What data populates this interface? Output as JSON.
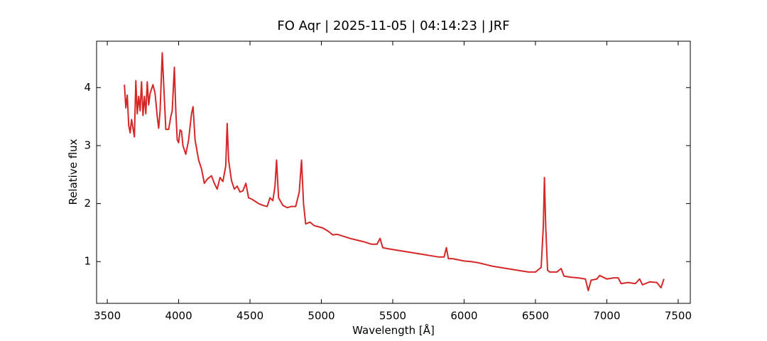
{
  "chart_data": {
    "type": "line",
    "title": "FO Aqr | 2025-11-05 | 04:14:23 | JRF",
    "xlabel": "Wavelength [Å]",
    "ylabel": "Relative flux",
    "xlim": [
      3425,
      7585
    ],
    "ylim": [
      0.28,
      4.8
    ],
    "xticks": [
      3500,
      4000,
      4500,
      5000,
      5500,
      6000,
      6500,
      7000,
      7500
    ],
    "yticks": [
      1,
      2,
      3,
      4
    ],
    "grid": false,
    "series": [
      {
        "name": "FO Aqr",
        "color": "#d62728",
        "x": [
          3620,
          3630,
          3640,
          3650,
          3660,
          3670,
          3680,
          3690,
          3700,
          3710,
          3720,
          3730,
          3740,
          3750,
          3760,
          3770,
          3780,
          3790,
          3800,
          3820,
          3835,
          3850,
          3860,
          3870,
          3885,
          3900,
          3910,
          3930,
          3945,
          3955,
          3970,
          3980,
          3990,
          4000,
          4010,
          4020,
          4030,
          4050,
          4070,
          4090,
          4101,
          4115,
          4140,
          4160,
          4180,
          4200,
          4230,
          4250,
          4270,
          4290,
          4310,
          4330,
          4340,
          4350,
          4370,
          4390,
          4410,
          4430,
          4450,
          4471,
          4490,
          4510,
          4530,
          4560,
          4590,
          4620,
          4640,
          4660,
          4675,
          4686,
          4700,
          4730,
          4760,
          4790,
          4820,
          4845,
          4861,
          4875,
          4890,
          4920,
          4950,
          4980,
          5010,
          5050,
          5080,
          5110,
          5150,
          5200,
          5250,
          5300,
          5350,
          5390,
          5411,
          5430,
          5470,
          5520,
          5570,
          5620,
          5670,
          5720,
          5770,
          5820,
          5860,
          5876,
          5890,
          5920,
          5960,
          6000,
          6050,
          6100,
          6150,
          6200,
          6250,
          6300,
          6350,
          6400,
          6450,
          6500,
          6540,
          6555,
          6563,
          6572,
          6585,
          6600,
          6650,
          6680,
          6700,
          6750,
          6800,
          6850,
          6870,
          6890,
          6930,
          6950,
          7000,
          7050,
          7080,
          7100,
          7150,
          7200,
          7230,
          7250,
          7300,
          7350,
          7380,
          7400
        ],
        "values": [
          4.05,
          3.65,
          3.87,
          3.35,
          3.22,
          3.45,
          3.3,
          3.15,
          4.12,
          3.55,
          3.85,
          3.6,
          4.1,
          3.52,
          3.85,
          3.55,
          4.1,
          3.7,
          3.9,
          4.05,
          3.9,
          3.5,
          3.3,
          3.6,
          4.6,
          3.8,
          3.28,
          3.28,
          3.5,
          3.6,
          4.35,
          3.6,
          3.1,
          3.05,
          3.27,
          3.25,
          3.0,
          2.85,
          3.1,
          3.55,
          3.67,
          3.1,
          2.75,
          2.6,
          2.35,
          2.42,
          2.48,
          2.35,
          2.25,
          2.45,
          2.38,
          2.65,
          3.38,
          2.75,
          2.4,
          2.25,
          2.3,
          2.2,
          2.22,
          2.35,
          2.1,
          2.08,
          2.05,
          2.0,
          1.97,
          1.95,
          2.1,
          2.05,
          2.3,
          2.75,
          2.1,
          1.97,
          1.93,
          1.95,
          1.95,
          2.2,
          2.75,
          2.0,
          1.65,
          1.68,
          1.62,
          1.6,
          1.58,
          1.52,
          1.46,
          1.47,
          1.44,
          1.4,
          1.37,
          1.34,
          1.3,
          1.3,
          1.4,
          1.24,
          1.22,
          1.2,
          1.18,
          1.16,
          1.14,
          1.12,
          1.1,
          1.08,
          1.08,
          1.24,
          1.05,
          1.05,
          1.03,
          1.01,
          1.0,
          0.98,
          0.95,
          0.92,
          0.9,
          0.88,
          0.86,
          0.84,
          0.82,
          0.82,
          0.9,
          1.6,
          2.45,
          1.6,
          0.85,
          0.82,
          0.82,
          0.88,
          0.75,
          0.73,
          0.72,
          0.7,
          0.5,
          0.68,
          0.7,
          0.76,
          0.7,
          0.72,
          0.72,
          0.62,
          0.64,
          0.62,
          0.7,
          0.6,
          0.65,
          0.64,
          0.55,
          0.7
        ]
      }
    ]
  }
}
